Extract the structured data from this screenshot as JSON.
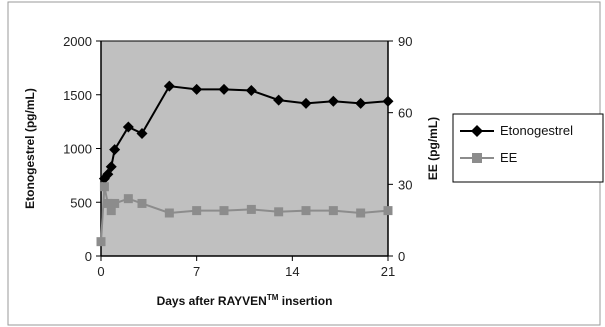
{
  "chart_data": {
    "type": "line",
    "title": "",
    "xlabel": "Days after RAYVEN",
    "xlabel_sup": "TM",
    "xlabel_suffix": " insertion",
    "ylabel": "Etonogestrel (pg/mL)",
    "y2label": "EE (pg/mL)",
    "xlim": [
      0,
      21
    ],
    "ylim": [
      0,
      2000
    ],
    "y2lim": [
      0,
      90
    ],
    "x_ticks": [
      0,
      7,
      14,
      21
    ],
    "y_ticks": [
      0,
      500,
      1000,
      1500,
      2000
    ],
    "y2_ticks": [
      0,
      30,
      60,
      90
    ],
    "grid": false,
    "plot_background": "#c0c0c0",
    "legend_position": "right",
    "series": [
      {
        "name": "Etonogestrel",
        "axis": "left",
        "marker": "diamond",
        "color": "#000000",
        "points": [
          {
            "x": 0.25,
            "y": 720
          },
          {
            "x": 0.5,
            "y": 760
          },
          {
            "x": 0.75,
            "y": 830
          },
          {
            "x": 1.0,
            "y": 990
          },
          {
            "x": 2.0,
            "y": 1200
          },
          {
            "x": 3.0,
            "y": 1140
          },
          {
            "x": 5.0,
            "y": 1580
          },
          {
            "x": 7.0,
            "y": 1550
          },
          {
            "x": 9.0,
            "y": 1550
          },
          {
            "x": 11.0,
            "y": 1540
          },
          {
            "x": 13.0,
            "y": 1450
          },
          {
            "x": 15.0,
            "y": 1420
          },
          {
            "x": 17.0,
            "y": 1440
          },
          {
            "x": 19.0,
            "y": 1420
          },
          {
            "x": 21.0,
            "y": 1440
          }
        ]
      },
      {
        "name": "EE",
        "axis": "right",
        "marker": "square",
        "color": "#8c8c8c",
        "points": [
          {
            "x": 0.0,
            "y": 6
          },
          {
            "x": 0.25,
            "y": 29
          },
          {
            "x": 0.5,
            "y": 22
          },
          {
            "x": 0.75,
            "y": 19
          },
          {
            "x": 1.0,
            "y": 22
          },
          {
            "x": 2.0,
            "y": 24
          },
          {
            "x": 3.0,
            "y": 22
          },
          {
            "x": 5.0,
            "y": 18
          },
          {
            "x": 7.0,
            "y": 19
          },
          {
            "x": 9.0,
            "y": 19
          },
          {
            "x": 11.0,
            "y": 19.5
          },
          {
            "x": 13.0,
            "y": 18.5
          },
          {
            "x": 15.0,
            "y": 19
          },
          {
            "x": 17.0,
            "y": 19
          },
          {
            "x": 19.0,
            "y": 18
          },
          {
            "x": 21.0,
            "y": 19
          }
        ]
      }
    ]
  }
}
